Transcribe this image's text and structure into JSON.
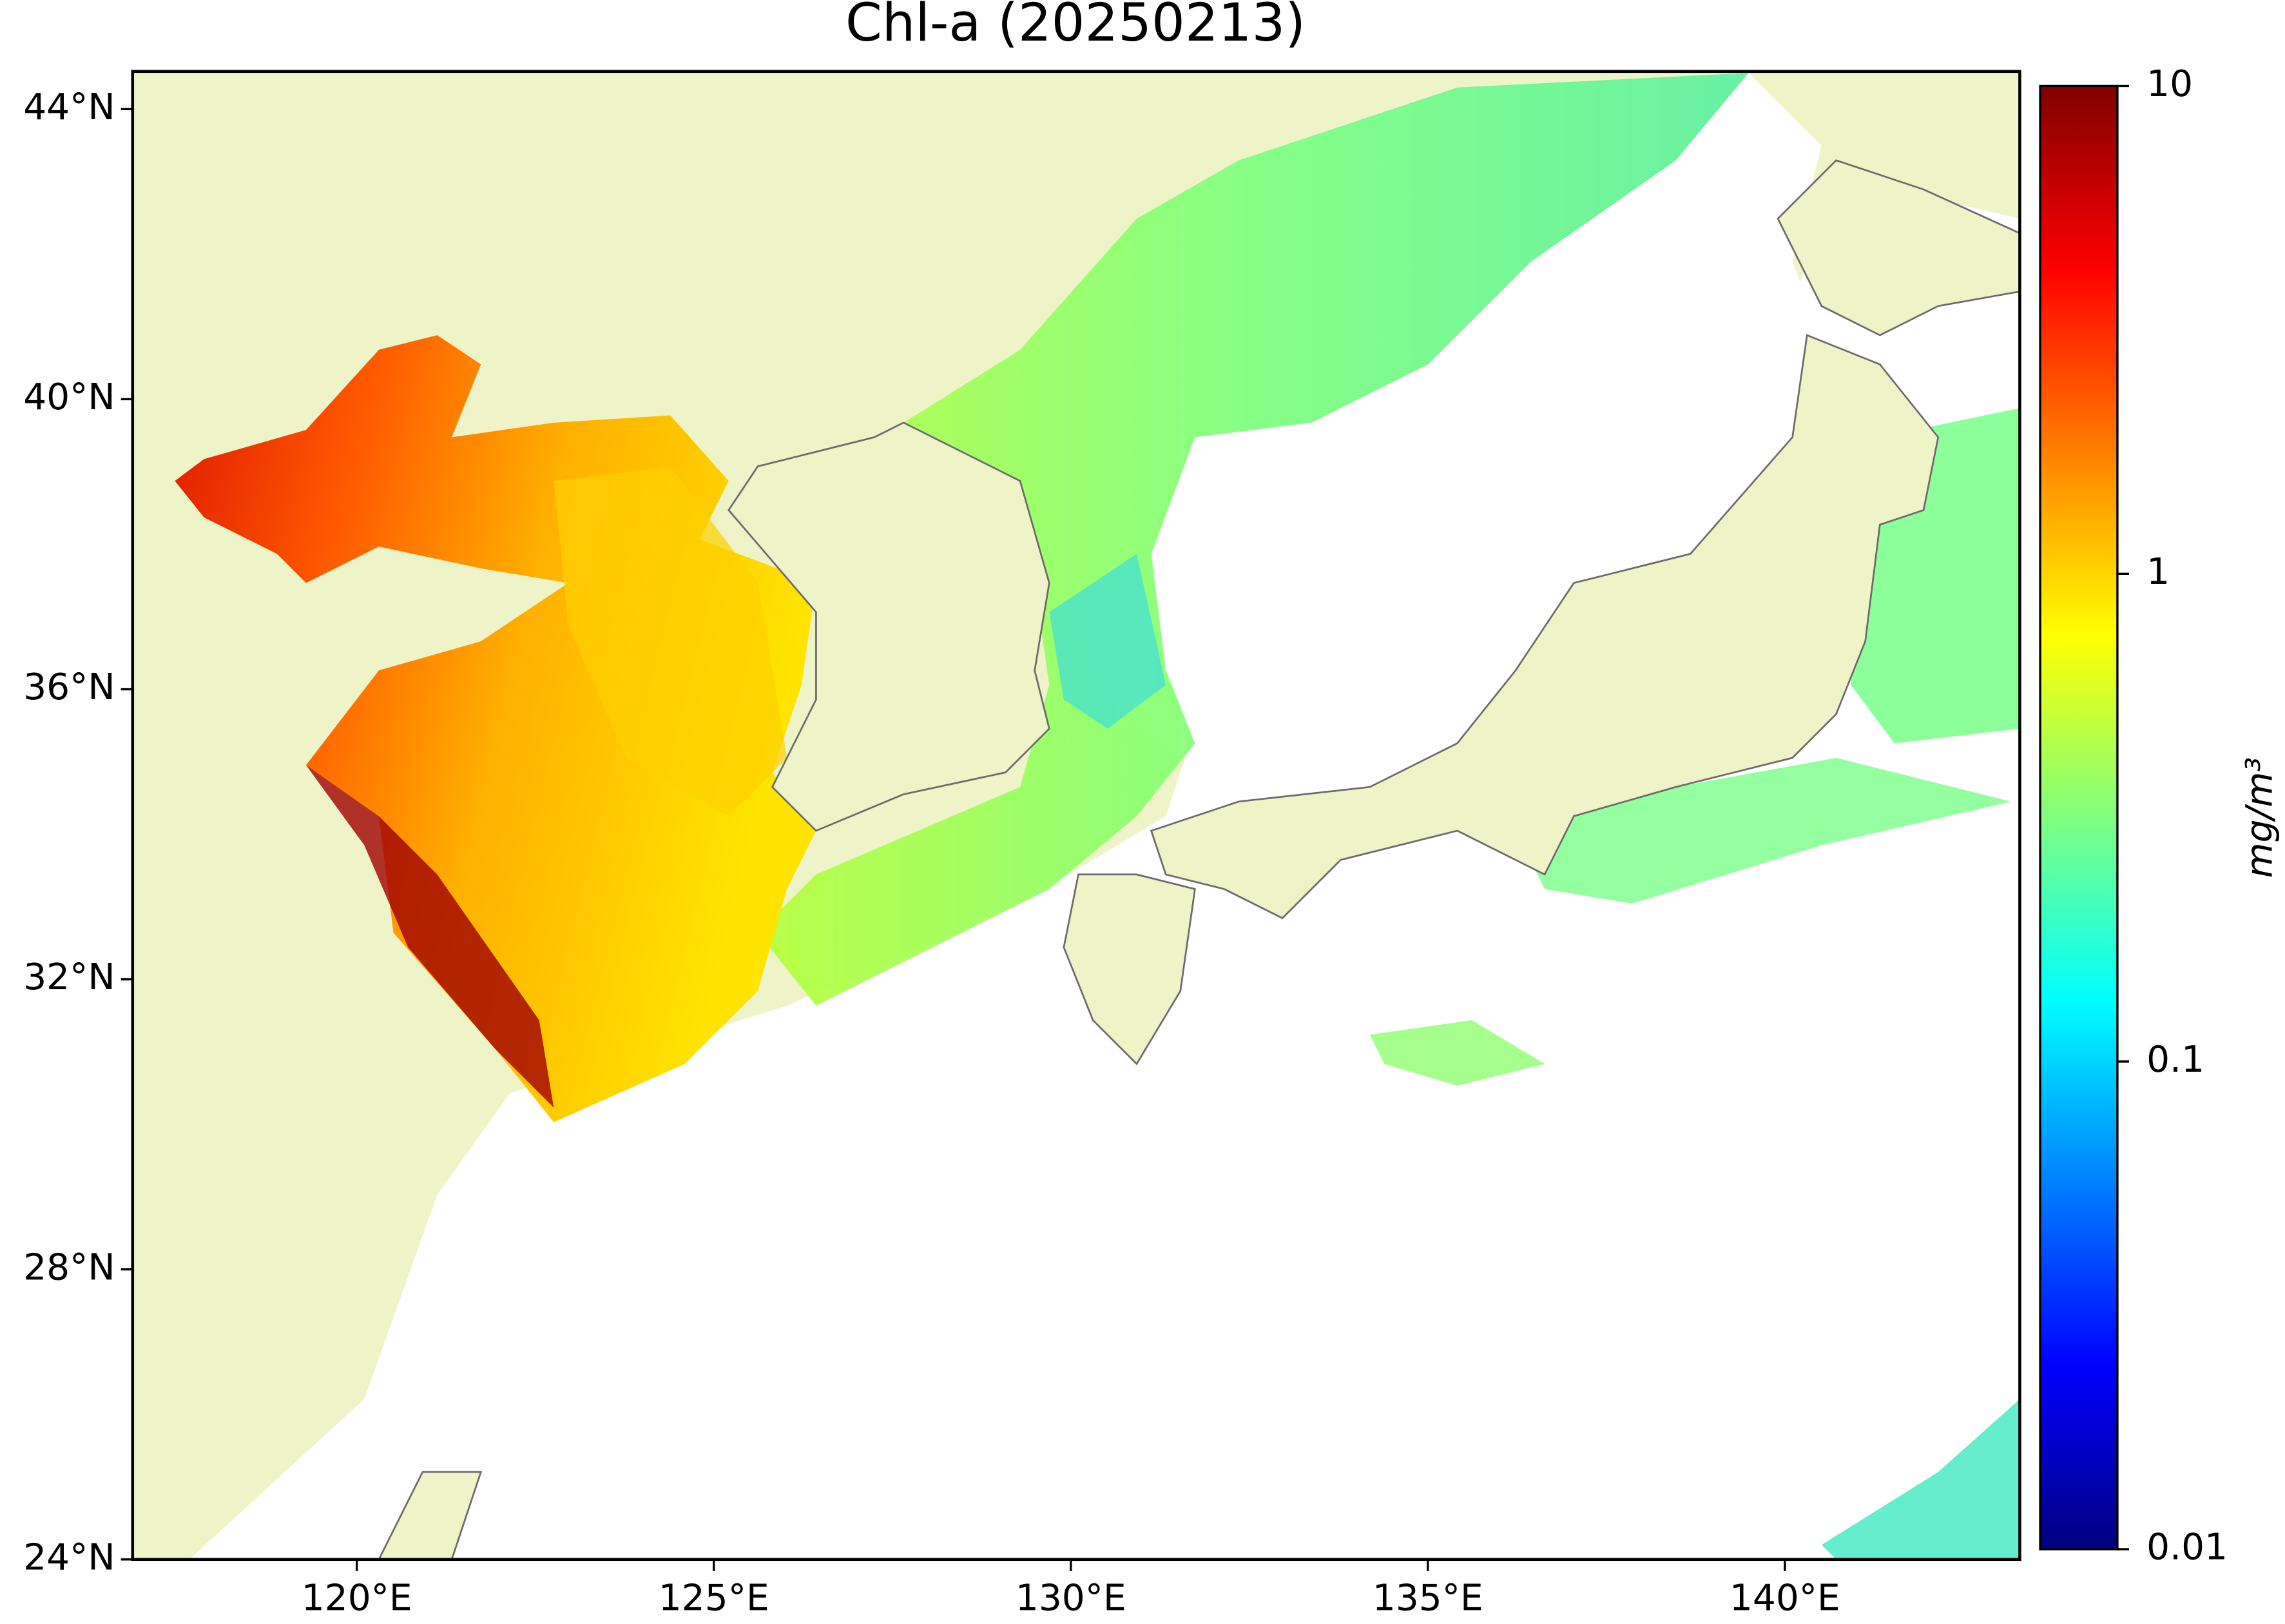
{
  "chart_data": {
    "type": "map",
    "title": "Chl-a (20250213)",
    "xlim": [
      116.86,
      143.29
    ],
    "xticks": [
      {
        "value": 120,
        "label": "120°E"
      },
      {
        "value": 125,
        "label": "125°E"
      },
      {
        "value": 130,
        "label": "130°E"
      },
      {
        "value": 135,
        "label": "135°E"
      },
      {
        "value": 140,
        "label": "140°E"
      }
    ],
    "ylim": [
      24,
      44.52
    ],
    "yticks": [
      {
        "value": 24,
        "label": "24°N"
      },
      {
        "value": 28,
        "label": "28°N"
      },
      {
        "value": 32,
        "label": "32°N"
      },
      {
        "value": 36,
        "label": "36°N"
      },
      {
        "value": 40,
        "label": "40°N"
      },
      {
        "value": 44,
        "label": "44°N"
      }
    ],
    "colorbar": {
      "label": "mg/m³",
      "colormap": "jet",
      "log_scale": true,
      "lim": [
        0.01,
        10
      ],
      "ticks": [
        0.01,
        0.1,
        1,
        10
      ]
    }
  }
}
